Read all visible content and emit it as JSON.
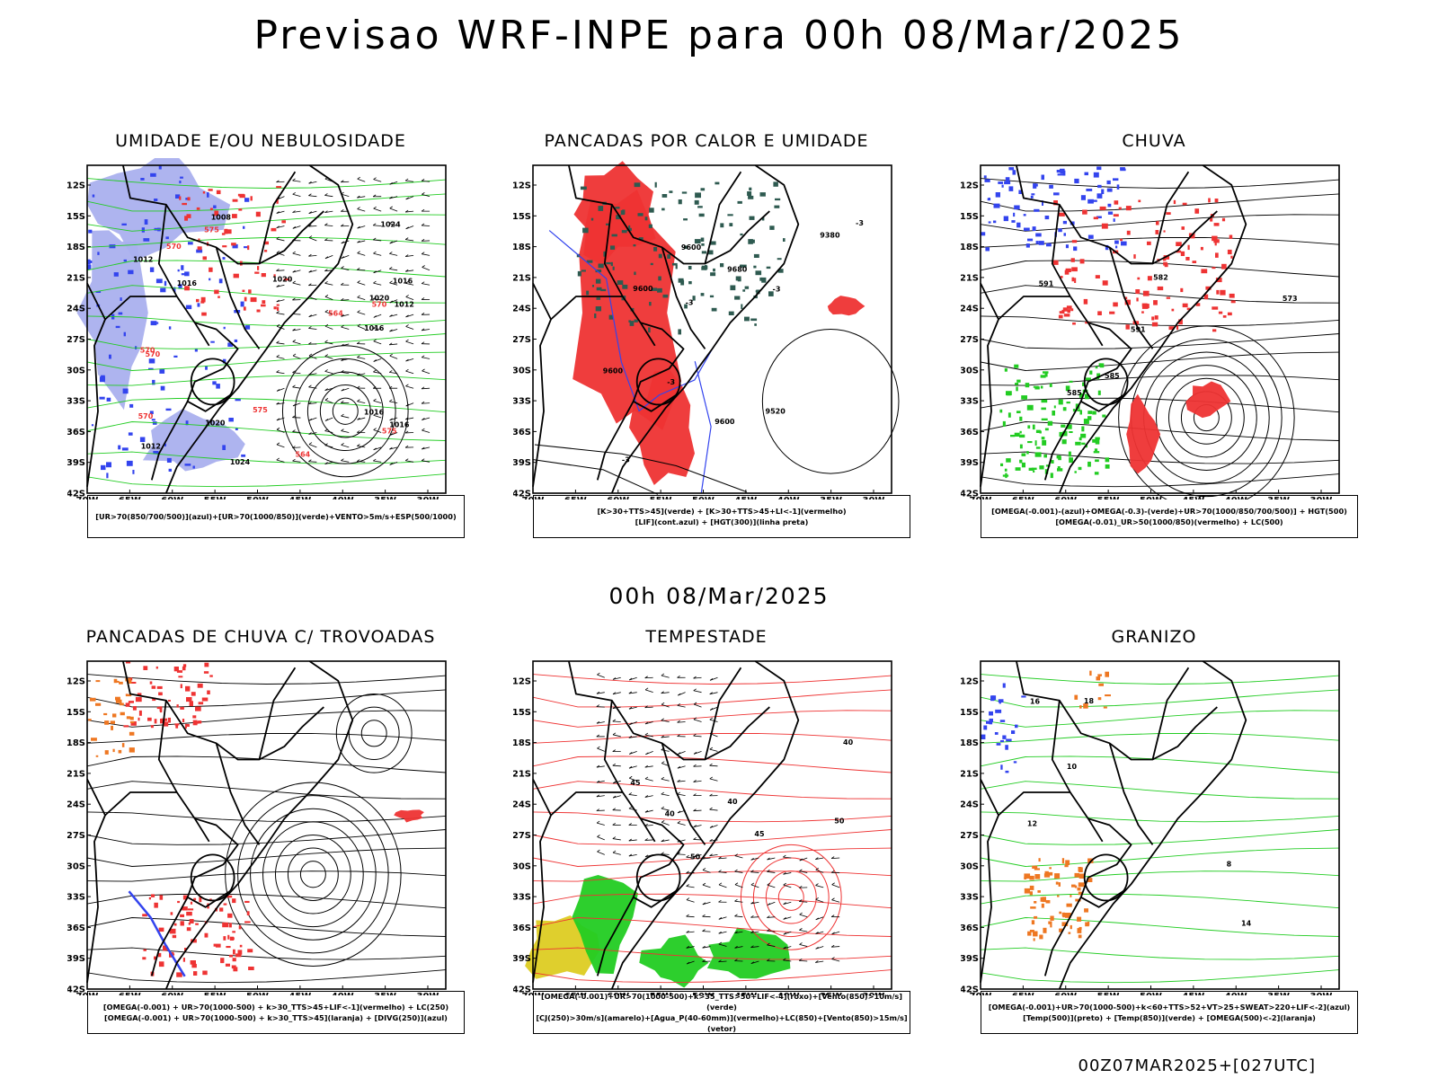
{
  "header": {
    "title": "Previsao WRF-INPE  para 00h 08/Mar/2025"
  },
  "middle_title": "00h 08/Mar/2025",
  "footer": "00Z07MAR2025+[027UTC]",
  "axes": {
    "lat_labels": [
      "12S",
      "15S",
      "18S",
      "21S",
      "24S",
      "27S",
      "30S",
      "33S",
      "36S",
      "39S",
      "42S"
    ],
    "lon_labels": [
      "70W",
      "65W",
      "60W",
      "55W",
      "50W",
      "45W",
      "40W",
      "35W",
      "30W"
    ]
  },
  "colors": {
    "green": "#22cc22",
    "red": "#ee3333",
    "blue": "#3344ee",
    "lavender": "#aab0ee",
    "darkgreen": "#2e5a50",
    "yellow": "#ddcc22",
    "orange": "#ee7722"
  },
  "panels": [
    {
      "title": "UMIDADE E/OU NEBULOSIDADE",
      "legend": [
        "[UR>70(850/700/500)](azul)+[UR>70(1000/850)](verde)+VENTO>5m/s+ESP(500/1000)"
      ],
      "contour_labels": [
        "1016",
        "1016",
        "1016",
        "1020",
        "1012",
        "1008",
        "1020",
        "1020",
        "1024",
        "1016",
        "1012",
        "1012",
        "1016",
        "1024",
        "570",
        "570",
        "575",
        "575",
        "575",
        "570",
        "570",
        "570",
        "564",
        "564"
      ]
    },
    {
      "title": "PANCADAS POR CALOR E UMIDADE",
      "legend": [
        "[K>30+TTS>45](verde) + [K>30+TTS>45+LI<-1](vermelho)",
        "[LIF](cont.azul) + [HGT(300)](linha preta)"
      ],
      "contour_labels": [
        "9600",
        "9600",
        "9680",
        "9600",
        "9520",
        "9600",
        "9380",
        "-3",
        "-3",
        "-3",
        "-3",
        "-3"
      ]
    },
    {
      "title": "CHUVA",
      "legend": [
        "[OMEGA(-0.001)-(azul)+OMEGA(-0.3)-(verde)+UR>70(1000/850/700/500)] + HGT(500)",
        "[OMEGA(-0.01)_UR>50(1000/850)(vermelho) + LC(500)"
      ],
      "contour_labels": [
        "591",
        "591",
        "585",
        "573",
        "585",
        "582"
      ]
    },
    {
      "title": "PANCADAS DE CHUVA C/ TROVOADAS",
      "legend": [
        "[OMEGA(-0.001) + UR>70(1000-500) + k>30_TTS>45+LIF<-1](vermelho) + LC(250)",
        "[OMEGA(-0.001) + UR>70(1000-500) + k>30_TTS>45](laranja) + [DIVG(250)](azul)"
      ],
      "contour_labels": []
    },
    {
      "title": "TEMPESTADE",
      "legend": [
        "[OMEGA(-0.001)+UR>70(1000-500)+k>35_TTS>50+LIF<-4](roxo)+[Vento(850)>10m/s](verde)",
        "[CJ(250)>30m/s](amarelo)+[Agua_P(40-60mm)](vermelho)+LC(850)+[Vento(850)>15m/s](vetor)"
      ],
      "contour_labels": [
        "40",
        "45",
        "50",
        "40",
        "40",
        "45",
        "50"
      ]
    },
    {
      "title": "GRANIZO",
      "legend": [
        "[OMEGA(-0.001)+UR>70(1000-500)+k<60+TTS>52+VT>25+SWEAT>220+LIF<-2](azul)",
        "[Temp(500)](preto) + [Temp(850)](verde) + [OMEGA(500)<-2](laranja)"
      ],
      "contour_labels": [
        "18",
        "14",
        "16",
        "12",
        "10",
        "8"
      ]
    }
  ]
}
